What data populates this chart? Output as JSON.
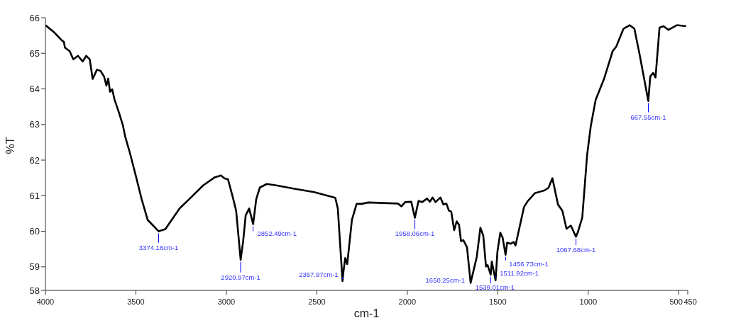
{
  "chart_data": {
    "type": "line",
    "xlabel": "cm-1",
    "ylabel": "%T",
    "x": [
      4000,
      3950,
      3909,
      3898,
      3892,
      3866,
      3846,
      3820,
      3794,
      3774,
      3755,
      3739,
      3715,
      3696,
      3676,
      3663,
      3653,
      3643,
      3631,
      3618,
      3592,
      3572,
      3559,
      3533,
      3500,
      3468,
      3435,
      3374,
      3337,
      3259,
      3206,
      3128,
      3063,
      3030,
      3011,
      2991,
      2965,
      2946,
      2921,
      2907,
      2893,
      2874,
      2852,
      2835,
      2815,
      2776,
      2724,
      2619,
      2515,
      2398,
      2384,
      2358,
      2354,
      2343,
      2332,
      2306,
      2280,
      2254,
      2215,
      2052,
      2032,
      2012,
      1978,
      1958,
      1938,
      1918,
      1891,
      1875,
      1860,
      1844,
      1817,
      1800,
      1784,
      1770,
      1757,
      1741,
      1727,
      1714,
      1703,
      1690,
      1670,
      1650,
      1636,
      1616,
      1596,
      1580,
      1565,
      1556,
      1539,
      1533,
      1512,
      1502,
      1486,
      1473,
      1457,
      1448,
      1428,
      1412,
      1402,
      1355,
      1334,
      1295,
      1241,
      1220,
      1198,
      1167,
      1143,
      1120,
      1096,
      1068,
      1059,
      1033,
      1006,
      986,
      959,
      912,
      865,
      845,
      805,
      771,
      745,
      718,
      668,
      657,
      641,
      628,
      606,
      584,
      557,
      510,
      459
    ],
    "series": [
      {
        "color": "#000000",
        "values": [
          65.79,
          65.58,
          65.36,
          65.32,
          65.16,
          65.06,
          64.83,
          64.93,
          64.77,
          64.93,
          64.83,
          64.28,
          64.54,
          64.51,
          64.35,
          64.09,
          64.29,
          63.92,
          63.99,
          63.7,
          63.31,
          62.98,
          62.66,
          62.2,
          61.55,
          60.9,
          60.32,
          60.0,
          60.06,
          60.64,
          60.9,
          61.29,
          61.52,
          61.57,
          61.49,
          61.46,
          60.97,
          60.58,
          59.2,
          59.73,
          60.45,
          60.64,
          60.2,
          60.9,
          61.23,
          61.33,
          61.29,
          61.19,
          61.1,
          60.94,
          60.64,
          58.6,
          58.82,
          59.25,
          59.08,
          60.32,
          60.77,
          60.77,
          60.81,
          60.78,
          60.7,
          60.82,
          60.83,
          60.38,
          60.85,
          60.82,
          60.92,
          60.83,
          60.95,
          60.82,
          60.95,
          60.75,
          60.78,
          60.58,
          60.55,
          60.03,
          60.28,
          60.18,
          59.72,
          59.75,
          59.55,
          58.55,
          58.85,
          59.28,
          60.1,
          59.88,
          59.01,
          59.05,
          58.78,
          59.15,
          58.62,
          59.42,
          59.96,
          59.82,
          59.34,
          59.68,
          59.65,
          59.7,
          59.6,
          60.68,
          60.85,
          61.07,
          61.15,
          61.22,
          61.49,
          60.75,
          60.58,
          60.07,
          60.16,
          59.85,
          59.95,
          60.38,
          62.15,
          62.95,
          63.69,
          64.29,
          65.06,
          65.19,
          65.69,
          65.79,
          65.69,
          65.02,
          63.66,
          64.35,
          64.45,
          64.32,
          65.72,
          65.76,
          65.66,
          65.79,
          65.76
        ]
      }
    ],
    "xlim": [
      4000,
      450
    ],
    "xticks": [
      4000,
      3500,
      3000,
      2500,
      2000,
      1500,
      1000,
      500,
      450
    ],
    "ylim": [
      58.34,
      66
    ],
    "yticks": [
      {
        "value": 58.34,
        "label": "58"
      },
      59,
      60,
      61,
      62,
      63,
      64,
      65,
      66
    ],
    "grid": false,
    "legend": false,
    "marker": "none",
    "line_style": "solid",
    "annotations": [
      {
        "text": "3374.18cm-1",
        "x": 3374.18,
        "y": 60.0
      },
      {
        "text": "2920.97cm-1",
        "x": 2920.97,
        "y": 59.2
      },
      {
        "text": "2852.49cm-1",
        "x": 2852.49,
        "y": 60.2
      },
      {
        "text": "2357.97cm-1",
        "x": 2357.97,
        "y": 58.6
      },
      {
        "text": "1958.06cm-1",
        "x": 1958.06,
        "y": 60.38
      },
      {
        "text": "1650.25cm-1",
        "x": 1650.25,
        "y": 58.55
      },
      {
        "text": "1539.01cm-1",
        "x": 1539.01,
        "y": 58.78
      },
      {
        "text": "1511.92cm-1",
        "x": 1511.92,
        "y": 58.62
      },
      {
        "text": "1456.73cm-1",
        "x": 1456.73,
        "y": 59.34
      },
      {
        "text": "1067.68cm-1",
        "x": 1067.68,
        "y": 59.85
      },
      {
        "text": "667.55cm-1",
        "x": 667.55,
        "y": 63.66
      }
    ]
  }
}
